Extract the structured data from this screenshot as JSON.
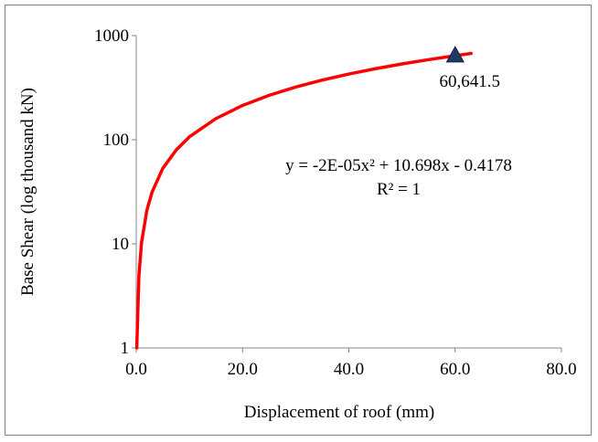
{
  "chart_data": {
    "type": "line",
    "title": "",
    "xlabel": "Displacement of roof (mm)",
    "ylabel": "Base Shear (log thousand kN)",
    "y_scale": "log10",
    "xlim": [
      0,
      80
    ],
    "ylim": [
      1,
      1000
    ],
    "x_ticks": [
      "0.0",
      "20.0",
      "40.0",
      "60.0",
      "80.0"
    ],
    "y_ticks": [
      "1",
      "10",
      "100",
      "1000"
    ],
    "gridlines": false,
    "legend": "none",
    "series": [
      {
        "type": "line",
        "color": "#ff0000",
        "x": [
          0.1,
          0.5,
          1,
          2,
          3,
          5,
          7.5,
          10,
          15,
          20,
          25,
          30,
          35,
          40,
          45,
          50,
          55,
          60,
          63
        ],
        "y": [
          1,
          4.9,
          10.3,
          21,
          31.6,
          53.1,
          79.4,
          106.6,
          159.6,
          213.5,
          267.0,
          320.5,
          373.9,
          427.5,
          481.0,
          534.4,
          587.8,
          641.5,
          674.0
        ]
      },
      {
        "type": "scatter",
        "marker": "triangle",
        "color": "#1f3864",
        "x": [
          60
        ],
        "y": [
          641.5
        ]
      }
    ],
    "annotations": [
      {
        "text": "60,641.5",
        "x": 60,
        "y": 641.5
      }
    ],
    "trendline": {
      "equation": "y = -2E-05x² + 10.698x - 0.4178",
      "r_squared": "R² = 1"
    }
  }
}
